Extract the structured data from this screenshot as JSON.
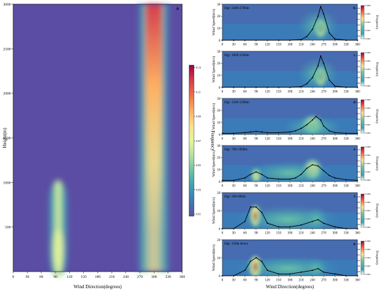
{
  "figure": {
    "main_panel": {
      "letter": "a",
      "xlabel": "Wind Direction(degrees)",
      "ylabel": "Height(m)",
      "xticks": [
        "0",
        "30",
        "60",
        "90",
        "120",
        "150",
        "180",
        "210",
        "240",
        "270",
        "300",
        "330",
        "360"
      ],
      "yticks": [
        "500",
        "1000",
        "1500",
        "2000",
        "2500",
        "3000"
      ],
      "colorbar_label": "Frequency",
      "colorbar_ticks": [
        "0.01",
        "0.03",
        "0.05",
        "0.07",
        "0.09",
        "0.11",
        "0.13"
      ]
    },
    "sub_xlabel": "Wind Direction(degrees)",
    "sub_ylabel": "Wind Speed(m/s)",
    "sub_colorbar_label": "Frequency",
    "sub_xticks": [
      "0",
      "30",
      "60",
      "90",
      "120",
      "150",
      "180",
      "210",
      "240",
      "270",
      "300",
      "330",
      "360"
    ]
  },
  "colors": {
    "background": "#5b4da3",
    "colormap": [
      "#5e4fa2",
      "#3b7bb8",
      "#3da1b4",
      "#6cc4a4",
      "#b3e0a2",
      "#e6f598",
      "#fee08b",
      "#fdae61",
      "#f46d43",
      "#d53e4f",
      "#9e0142"
    ],
    "line": "#000000"
  },
  "chart_data": [
    {
      "type": "heatmap",
      "panel": "a",
      "xlabel": "Wind Direction(degrees)",
      "ylabel": "Height(m)",
      "xlim": [
        0,
        360
      ],
      "ylim": [
        0,
        3000
      ],
      "colorbar_range": [
        0.01,
        0.13
      ],
      "features": [
        {
          "description": "low-level band",
          "x_center": 85,
          "y_range": [
            0,
            1100
          ],
          "peak": 0.09
        },
        {
          "description": "upper-level band",
          "x_center": 255,
          "y_range": [
            0,
            3000
          ],
          "peak": 0.13
        }
      ]
    },
    {
      "type": "heatmap",
      "panel": "b",
      "label": "Hgt: 2400-2700m",
      "xlim": [
        0,
        360
      ],
      "ylim": [
        0,
        30
      ],
      "yticks": [
        0,
        10,
        20,
        30
      ],
      "colorbar_left_ticks": [
        "0.02",
        "0.05",
        "0.10",
        "0.15",
        "0.20",
        "0.25"
      ],
      "colorbar_right_ticks": [
        "0.000",
        "0.002",
        "0.004",
        "0.006",
        "0.008"
      ],
      "line": {
        "x": [
          0,
          30,
          60,
          90,
          120,
          150,
          180,
          210,
          225,
          240,
          255,
          262,
          270,
          285,
          300,
          330,
          360
        ],
        "y": [
          0,
          0,
          0,
          0,
          0,
          0,
          0,
          0.5,
          3,
          9,
          20,
          28,
          22,
          6,
          1,
          0,
          0
        ]
      }
    },
    {
      "type": "heatmap",
      "panel": "c",
      "label": "Hgt: 1800-2100m",
      "xlim": [
        0,
        360
      ],
      "ylim": [
        0,
        30
      ],
      "yticks": [
        0,
        10,
        20,
        30
      ],
      "colorbar_left_ticks": [
        "0.02",
        "0.05",
        "0.10",
        "0.15",
        "0.20",
        "0.25"
      ],
      "colorbar_right_ticks": [
        "0.000",
        "0.002",
        "0.004",
        "0.006",
        "0.008"
      ],
      "line": {
        "x": [
          0,
          30,
          60,
          90,
          120,
          150,
          180,
          210,
          225,
          240,
          255,
          262,
          270,
          285,
          300,
          330,
          360
        ],
        "y": [
          0,
          0,
          0,
          0,
          0,
          0,
          0,
          0.5,
          3,
          8,
          18,
          26,
          20,
          6,
          1,
          0,
          0
        ]
      }
    },
    {
      "type": "heatmap",
      "panel": "d",
      "label": "Hgt: 1200-1500m",
      "xlim": [
        0,
        360
      ],
      "ylim": [
        0,
        30
      ],
      "yticks": [
        0,
        10,
        20,
        30
      ],
      "colorbar_left_ticks": [
        "0.02",
        "0.05",
        "0.10",
        "0.15",
        "0.20",
        "0.25"
      ],
      "colorbar_right_ticks": [
        "0.000",
        "0.002",
        "0.004",
        "0.006",
        "0.008"
      ],
      "line": {
        "x": [
          0,
          30,
          60,
          75,
          90,
          105,
          120,
          150,
          180,
          195,
          210,
          225,
          240,
          250,
          262,
          270,
          285,
          300,
          330,
          360
        ],
        "y": [
          1,
          1,
          1.5,
          2,
          2.5,
          2,
          1.5,
          1.5,
          2,
          3,
          5,
          8,
          12,
          15,
          12,
          7,
          3,
          1.5,
          1,
          1
        ]
      }
    },
    {
      "type": "heatmap",
      "panel": "e",
      "label": "Hgt: 700-1000m",
      "xlim": [
        0,
        360
      ],
      "ylim": [
        0,
        30
      ],
      "yticks": [
        0,
        10,
        20,
        30
      ],
      "colorbar_left_ticks": [
        "0.02",
        "0.05",
        "0.10",
        "0.15",
        "0.20",
        "0.25"
      ],
      "colorbar_right_ticks": [
        "0.000",
        "0.002",
        "0.004",
        "0.006",
        "0.008"
      ],
      "line": {
        "x": [
          0,
          30,
          60,
          75,
          90,
          105,
          120,
          150,
          180,
          195,
          210,
          225,
          240,
          255,
          270,
          285,
          300,
          330,
          360
        ],
        "y": [
          1,
          1,
          3,
          6,
          8,
          6,
          3,
          2,
          2,
          3,
          6,
          11,
          14,
          13,
          9,
          5,
          3,
          1.5,
          1
        ]
      }
    },
    {
      "type": "heatmap",
      "panel": "f",
      "label": "Hgt: 300-600m",
      "xlim": [
        0,
        360
      ],
      "ylim": [
        0,
        20
      ],
      "yticks": [
        0,
        10,
        20
      ],
      "colorbar_left_ticks": [
        "0.02",
        "0.05",
        "0.10",
        "0.15",
        "0.20",
        "0.25"
      ],
      "colorbar_right_ticks": [
        "0.000",
        "0.002",
        "0.004",
        "0.006",
        "0.008"
      ],
      "line": {
        "x": [
          0,
          30,
          60,
          75,
          90,
          105,
          120,
          150,
          180,
          210,
          240,
          255,
          270,
          300,
          330,
          360
        ],
        "y": [
          0,
          0,
          4,
          12,
          12,
          9,
          3,
          1,
          1,
          2,
          4,
          5,
          3,
          1,
          0,
          0
        ]
      }
    },
    {
      "type": "heatmap",
      "panel": "g",
      "label": "Hgt: 150m down",
      "xlim": [
        0,
        360
      ],
      "ylim": [
        0,
        20
      ],
      "yticks": [
        0,
        10,
        20
      ],
      "colorbar_left_ticks": [
        "0.02",
        "0.05",
        "0.10",
        "0.15",
        "0.20",
        "0.25"
      ],
      "colorbar_right_ticks": [
        "0.000",
        "0.002",
        "0.004",
        "0.006",
        "0.008"
      ],
      "line": {
        "x": [
          0,
          30,
          60,
          75,
          90,
          105,
          120,
          150,
          180,
          210,
          240,
          255,
          270,
          300,
          330,
          360
        ],
        "y": [
          0,
          0,
          3,
          8,
          10,
          8,
          3,
          1,
          1,
          2,
          3,
          4,
          2,
          1,
          0,
          0
        ]
      }
    }
  ]
}
